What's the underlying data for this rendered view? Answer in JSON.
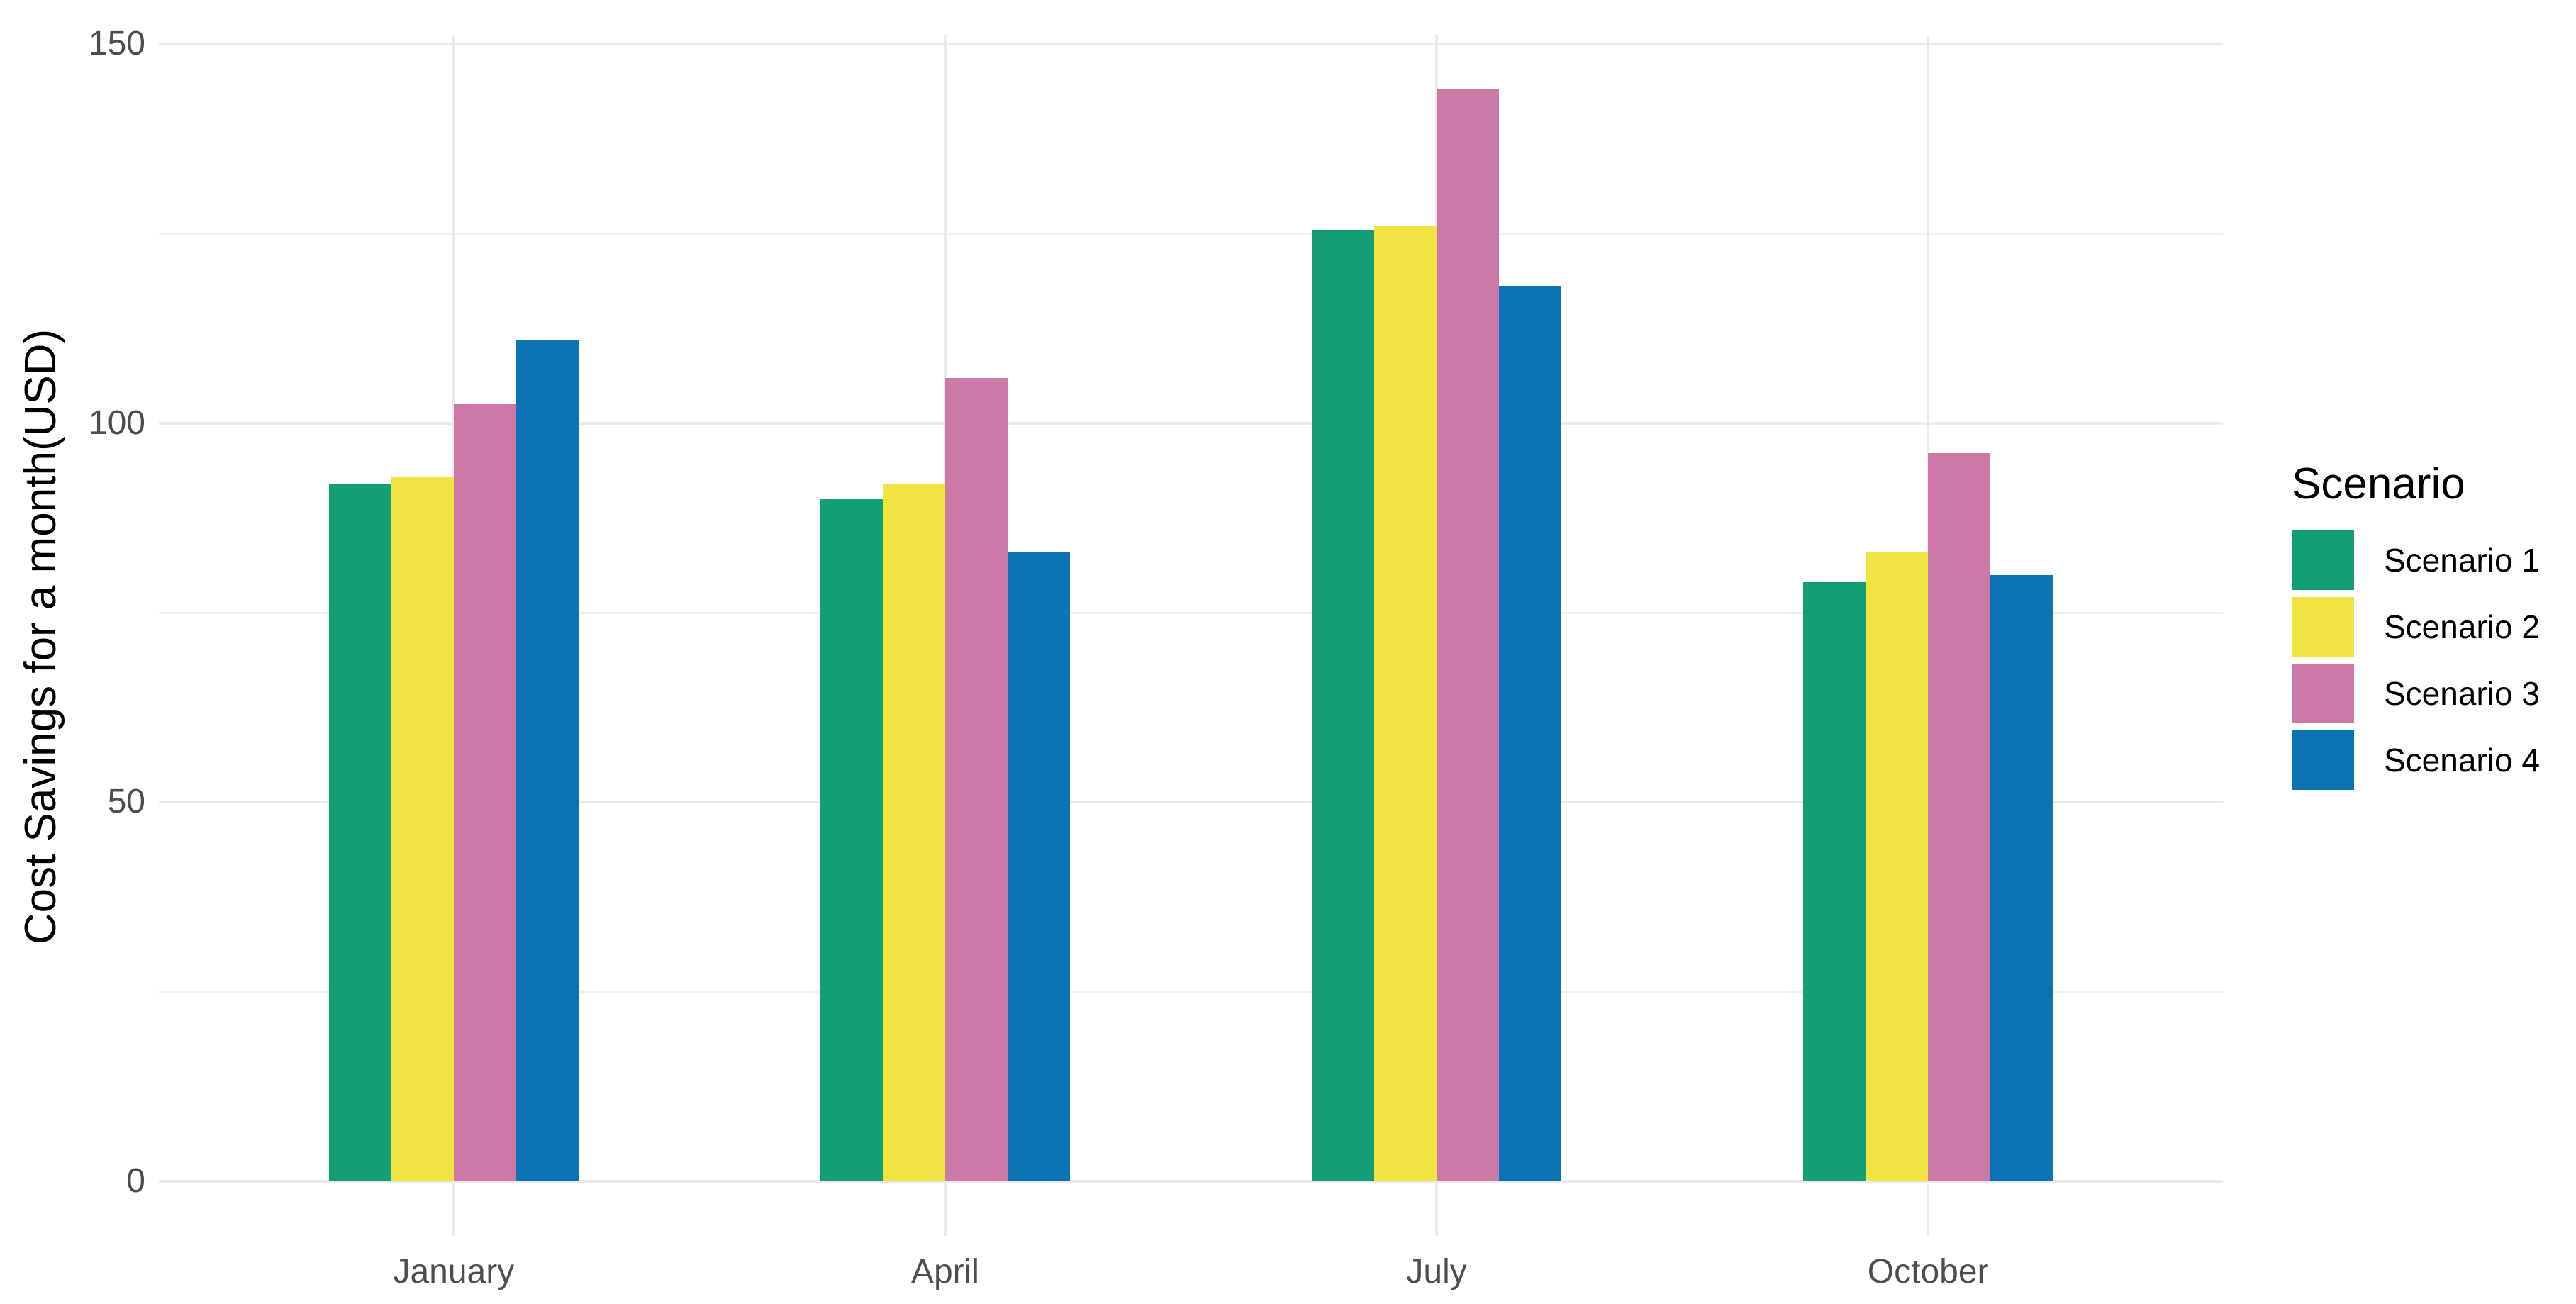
{
  "chart_data": {
    "type": "bar",
    "title": "",
    "xlabel": "",
    "ylabel": "Cost Savings for a month(USD)",
    "categories": [
      "January",
      "April",
      "July",
      "October"
    ],
    "series": [
      {
        "name": "Scenario 1",
        "color": "#149E74",
        "values": [
          92,
          90,
          125.5,
          79
        ]
      },
      {
        "name": "Scenario 2",
        "color": "#F0E442",
        "values": [
          93,
          92,
          126,
          83
        ]
      },
      {
        "name": "Scenario 3",
        "color": "#CC79A7",
        "values": [
          102.5,
          106,
          144,
          96
        ]
      },
      {
        "name": "Scenario 4",
        "color": "#0C73B4",
        "values": [
          111,
          83,
          118,
          80
        ]
      }
    ],
    "ylim": [
      0,
      150
    ],
    "y_major_breaks": [
      0,
      50,
      100,
      150
    ],
    "y_minor_breaks": [
      25,
      75,
      125
    ],
    "grid": true,
    "legend_title": "Scenario",
    "legend_position": "right",
    "colors": {
      "background": "#FFFFFF",
      "grid_major": "#EBEBEB",
      "grid_minor": "#F1F1F1",
      "tick_label": "#4D4D4D",
      "axis_title": "#000000"
    }
  }
}
